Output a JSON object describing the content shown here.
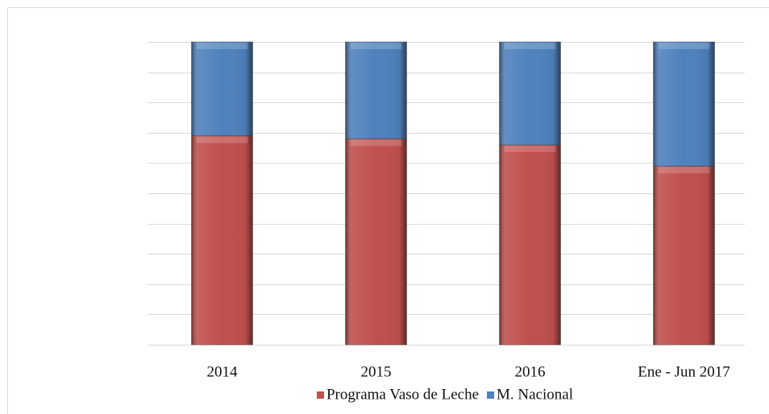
{
  "chart_data": {
    "type": "stacked_bar",
    "categories": [
      "2014",
      "2015",
      "2016",
      "Ene - Jun 2017"
    ],
    "series": [
      {
        "name": "Programa Vaso de Leche",
        "color": "#c0504d",
        "values": [
          69,
          68,
          66,
          59
        ]
      },
      {
        "name": "M. Nacional",
        "color": "#4f81bd",
        "values": [
          31,
          32,
          34,
          41
        ]
      }
    ],
    "ylim": [
      0,
      100
    ],
    "yticks": [
      0,
      10,
      20,
      30,
      40,
      50,
      60,
      70,
      80,
      90,
      100
    ],
    "grid": true,
    "legend": "bottom"
  }
}
